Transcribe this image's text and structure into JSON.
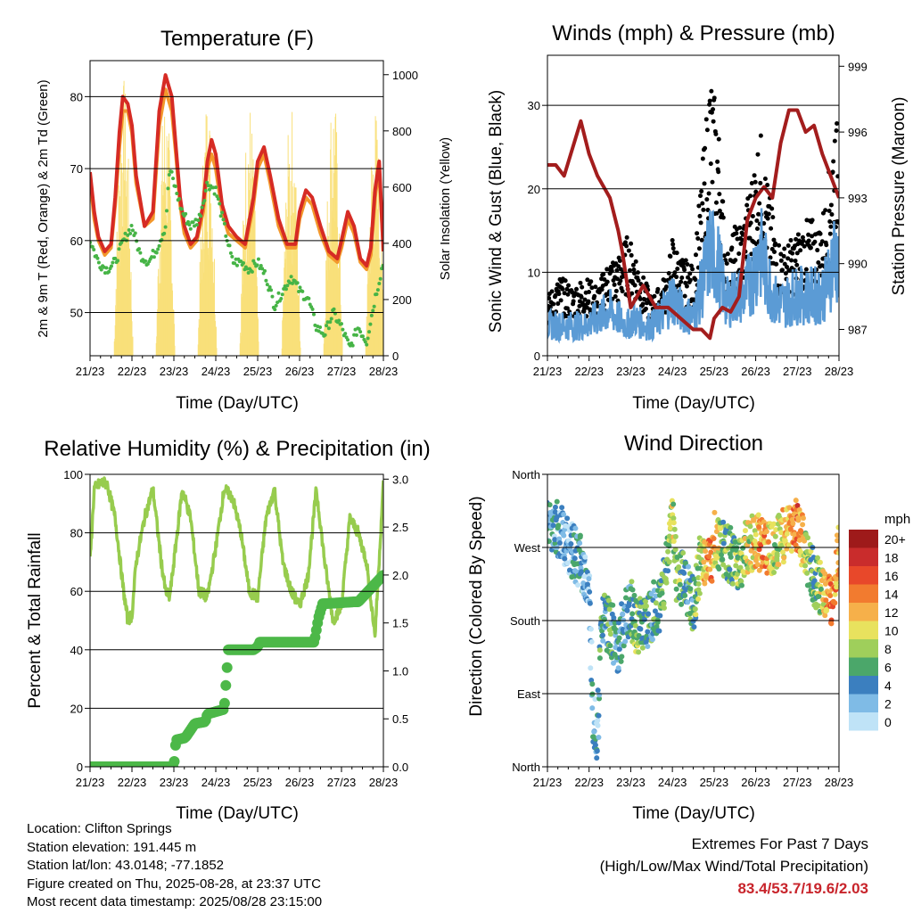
{
  "colors": {
    "temp_2m": "#d62b24",
    "temp_9m": "#f3982c",
    "dewpoint": "#46b446",
    "solar": "#f9e07a",
    "wind": "#5b9bd5",
    "gust": "#000000",
    "pressure": "#a31d1d",
    "rh": "#97cc4e",
    "precip": "#4cb848",
    "gridline": "#000000"
  },
  "x_ticks": [
    "21/23",
    "22/23",
    "23/23",
    "24/23",
    "25/23",
    "26/23",
    "27/23",
    "28/23"
  ],
  "chart_data": [
    {
      "id": "temperature",
      "type": "line",
      "title": "Temperature (F)",
      "xlabel": "Time (Day/UTC)",
      "ylabel": "2m & 9m T (Red, Orange) & 2m Td (Green)",
      "ylabel_right": "Solar Insolation (Yellow)",
      "xlim": [
        0,
        7
      ],
      "ylim": [
        44,
        85
      ],
      "ylim_right": [
        0,
        1050
      ],
      "yticks": [
        50,
        60,
        70,
        80
      ],
      "yticks_right": [
        0,
        200,
        400,
        600,
        800,
        1000
      ],
      "series": [
        {
          "key": "temp_9m",
          "axis": "left",
          "x": [
            0,
            0.1,
            0.2,
            0.35,
            0.5,
            0.6,
            0.7,
            0.78,
            0.9,
            1.0,
            1.1,
            1.3,
            1.5,
            1.65,
            1.8,
            1.95,
            2.05,
            2.15,
            2.25,
            2.4,
            2.55,
            2.7,
            2.8,
            2.9,
            3.0,
            3.15,
            3.3,
            3.5,
            3.7,
            3.9,
            4.0,
            4.15,
            4.3,
            4.5,
            4.7,
            4.9,
            5.0,
            5.15,
            5.3,
            5.5,
            5.7,
            5.9,
            6.0,
            6.15,
            6.3,
            6.45,
            6.6,
            6.7,
            6.8,
            6.9,
            7.0
          ],
          "values": [
            68.5,
            63,
            60,
            58,
            59,
            65,
            73,
            78,
            78,
            75,
            68,
            62,
            63,
            76,
            81,
            78,
            72,
            65,
            61,
            59,
            60,
            64,
            70,
            72,
            70,
            64,
            61,
            60,
            59,
            65,
            70,
            72,
            68,
            62,
            59,
            59,
            63,
            66,
            65,
            61,
            58,
            57,
            59,
            63,
            61,
            57,
            56,
            58,
            66,
            70,
            58.5
          ]
        },
        {
          "key": "temp_2m",
          "axis": "left",
          "x": [
            0,
            0.1,
            0.2,
            0.35,
            0.5,
            0.6,
            0.7,
            0.78,
            0.9,
            1.0,
            1.1,
            1.3,
            1.5,
            1.65,
            1.8,
            1.95,
            2.05,
            2.15,
            2.25,
            2.4,
            2.55,
            2.7,
            2.8,
            2.9,
            3.0,
            3.15,
            3.3,
            3.5,
            3.7,
            3.9,
            4.0,
            4.15,
            4.3,
            4.5,
            4.7,
            4.9,
            5.0,
            5.15,
            5.3,
            5.5,
            5.7,
            5.9,
            6.0,
            6.15,
            6.3,
            6.45,
            6.6,
            6.7,
            6.8,
            6.9,
            7.0
          ],
          "values": [
            69.5,
            64,
            60.5,
            58.5,
            59.5,
            66,
            75,
            80,
            79,
            76,
            69,
            62,
            64,
            78,
            83,
            80,
            73,
            66,
            62,
            59.5,
            60.5,
            65,
            71,
            74,
            72,
            65,
            62,
            60.5,
            59.5,
            66,
            71,
            73,
            69,
            63,
            59.5,
            59.5,
            64,
            67,
            66,
            62,
            58.5,
            57.5,
            60,
            64,
            62,
            57.5,
            56.5,
            59,
            67,
            71,
            58.5
          ]
        },
        {
          "key": "dewpoint",
          "axis": "left",
          "x": [
            0,
            0.2,
            0.4,
            0.6,
            0.8,
            1.0,
            1.2,
            1.4,
            1.6,
            1.8,
            1.9,
            2.0,
            2.2,
            2.4,
            2.6,
            2.8,
            3.0,
            3.2,
            3.4,
            3.6,
            3.8,
            4.0,
            4.2,
            4.4,
            4.6,
            4.8,
            5.0,
            5.2,
            5.4,
            5.6,
            5.8,
            6.0,
            6.2,
            6.4,
            6.6,
            6.8,
            7.0
          ],
          "values": [
            60,
            57,
            56,
            57,
            60,
            62,
            58,
            57,
            59,
            62,
            70,
            68,
            64,
            62,
            63,
            68,
            67,
            62,
            57,
            57,
            56,
            57,
            55,
            51,
            53,
            55,
            53,
            52,
            48,
            47,
            50,
            48,
            45,
            48,
            46,
            52,
            57
          ]
        },
        {
          "key": "solar",
          "axis": "right",
          "peaks": [
            0.8,
            1.8,
            2.8,
            3.8,
            4.8,
            5.8,
            6.8
          ],
          "peak_values": [
            1000,
            960,
            960,
            930,
            900,
            980,
            900
          ]
        }
      ]
    },
    {
      "id": "winds",
      "type": "scatter",
      "title": "Winds (mph) & Pressure (mb)",
      "xlabel": "Time (Day/UTC)",
      "ylabel": "Sonic Wind & Gust (Blue, Black)",
      "ylabel_right": "Station Pressure (Maroon)",
      "xlim": [
        0,
        7
      ],
      "ylim": [
        0,
        36
      ],
      "ylim_right": [
        985.8,
        999.5
      ],
      "yticks": [
        0,
        10,
        20,
        30
      ],
      "yticks_right": [
        987,
        990,
        993,
        996,
        999
      ],
      "series": [
        {
          "key": "gust",
          "kind": "points",
          "x": [
            0,
            0.3,
            0.6,
            0.9,
            1.2,
            1.5,
            1.7,
            1.9,
            2.1,
            2.3,
            2.5,
            2.7,
            2.9,
            3.0,
            3.2,
            3.5,
            3.7,
            3.9,
            4.1,
            4.3,
            4.5,
            4.7,
            4.9,
            5.1,
            5.3,
            5.5,
            5.7,
            5.9,
            6.1,
            6.3,
            6.5,
            6.7,
            6.9,
            7.0
          ],
          "values": [
            6,
            8,
            7,
            8,
            7,
            10,
            10,
            12,
            11,
            8,
            6,
            7,
            9,
            12,
            10,
            9,
            18,
            29,
            24,
            10,
            13,
            14,
            18,
            23,
            17,
            12,
            11,
            12,
            13,
            14,
            13,
            16,
            25,
            22
          ]
        },
        {
          "key": "wind",
          "kind": "line",
          "x": [
            0,
            0.3,
            0.6,
            0.9,
            1.2,
            1.5,
            1.7,
            1.9,
            2.1,
            2.3,
            2.5,
            2.7,
            2.9,
            3.0,
            3.2,
            3.5,
            3.7,
            3.9,
            4.1,
            4.3,
            4.5,
            4.7,
            4.9,
            5.1,
            5.3,
            5.5,
            5.7,
            5.9,
            6.1,
            6.3,
            6.5,
            6.7,
            6.9,
            7.0
          ],
          "values": [
            4,
            4,
            4,
            4,
            5,
            6,
            5,
            4,
            5,
            4,
            4,
            5,
            7,
            8,
            6,
            5,
            9,
            14,
            12,
            7,
            8,
            8,
            10,
            14,
            10,
            7,
            7,
            8,
            8,
            8,
            8,
            9,
            14,
            11
          ]
        },
        {
          "key": "pressure",
          "kind": "line",
          "axis": "right",
          "x": [
            0,
            0.2,
            0.4,
            0.8,
            1.0,
            1.2,
            1.5,
            1.7,
            1.8,
            2.0,
            2.3,
            2.6,
            2.9,
            3.2,
            3.5,
            3.7,
            3.9,
            4.0,
            4.2,
            4.4,
            4.6,
            4.8,
            5.0,
            5.2,
            5.4,
            5.6,
            5.8,
            6.0,
            6.2,
            6.4,
            6.6,
            6.8,
            7.0
          ],
          "values": [
            994.5,
            994.5,
            994.0,
            996.5,
            995.0,
            994.0,
            993.0,
            991.5,
            990.5,
            988.0,
            989.0,
            988.0,
            988.0,
            987.5,
            987.0,
            987.0,
            986.6,
            987.5,
            988.0,
            987.8,
            988.5,
            992.0,
            993.0,
            993.5,
            993.0,
            995.5,
            997.0,
            997.0,
            996.0,
            996.3,
            995.0,
            994.0,
            993.0
          ]
        }
      ]
    },
    {
      "id": "humidity",
      "type": "line",
      "title": "Relative Humidity (%) & Precipitation (in)",
      "xlabel": "Time (Day/UTC)",
      "ylabel": "Percent & Total Rainfall",
      "xlim": [
        0,
        7
      ],
      "ylim": [
        0,
        100
      ],
      "ylim_right": [
        0,
        3.05
      ],
      "yticks": [
        0,
        20,
        40,
        60,
        80,
        100
      ],
      "yticks_right": [
        "0.0",
        "0.5",
        "1.0",
        "1.5",
        "2.0",
        "2.5",
        "3.0"
      ],
      "series": [
        {
          "key": "rh",
          "axis": "left",
          "x": [
            0,
            0.1,
            0.25,
            0.4,
            0.6,
            0.8,
            0.9,
            1.0,
            1.1,
            1.3,
            1.5,
            1.7,
            1.8,
            1.9,
            2.0,
            2.2,
            2.4,
            2.6,
            2.8,
            3.0,
            3.2,
            3.4,
            3.6,
            3.8,
            4.0,
            4.2,
            4.4,
            4.6,
            4.8,
            5.0,
            5.2,
            5.4,
            5.6,
            5.8,
            6.0,
            6.2,
            6.4,
            6.6,
            6.8,
            7.0
          ],
          "values": [
            70,
            95,
            97,
            97,
            85,
            60,
            50,
            52,
            70,
            85,
            95,
            70,
            60,
            58,
            70,
            95,
            85,
            60,
            58,
            75,
            95,
            92,
            80,
            60,
            58,
            85,
            95,
            70,
            60,
            55,
            65,
            95,
            70,
            50,
            55,
            85,
            80,
            70,
            45,
            97
          ]
        },
        {
          "key": "precip",
          "axis": "right",
          "x": [
            0,
            2.0,
            2.05,
            2.25,
            2.3,
            2.5,
            2.75,
            2.8,
            3.2,
            3.3,
            3.9,
            4.0,
            4.05,
            5.35,
            5.45,
            5.55,
            5.95,
            6.3,
            6.4,
            7.0
          ],
          "values": [
            0.0,
            0.0,
            0.28,
            0.3,
            0.32,
            0.45,
            0.47,
            0.55,
            0.6,
            1.22,
            1.22,
            1.25,
            1.3,
            1.3,
            1.55,
            1.7,
            1.71,
            1.72,
            1.72,
            2.0
          ]
        }
      ]
    },
    {
      "id": "wind_direction",
      "type": "scatter",
      "title": "Wind Direction",
      "xlabel": "Time (Day/UTC)",
      "ylabel": "Direction (Colored By Speed)",
      "xlim": [
        0,
        7
      ],
      "ylim": [
        0,
        360
      ],
      "yticks": [
        "North",
        "East",
        "South",
        "West",
        "North"
      ],
      "legend_title": "mph",
      "legend_labels": [
        "20+",
        "18",
        "16",
        "14",
        "12",
        "10",
        "8",
        "6",
        "4",
        "2",
        "0"
      ],
      "legend_colors": [
        "#9e1a1a",
        "#c92c2c",
        "#e8482a",
        "#f27b2f",
        "#f6b04a",
        "#e8e25e",
        "#9fcf5b",
        "#4ba76a",
        "#3b7fbf",
        "#7fbbe6",
        "#bfe3f7"
      ],
      "series": [
        {
          "key": "direction",
          "x": [
            0.1,
            0.3,
            0.5,
            0.7,
            0.9,
            1.0,
            1.1,
            1.2,
            1.3,
            1.5,
            1.7,
            1.9,
            2.0,
            2.1,
            2.3,
            2.5,
            2.7,
            2.9,
            3.0,
            3.1,
            3.3,
            3.5,
            3.7,
            3.9,
            4.0,
            4.2,
            4.4,
            4.6,
            4.8,
            5.0,
            5.2,
            5.4,
            5.6,
            5.8,
            6.0,
            6.2,
            6.4,
            6.6,
            6.8,
            7.0
          ],
          "values": [
            300,
            290,
            270,
            260,
            240,
            210,
            60,
            40,
            180,
            170,
            150,
            190,
            200,
            170,
            175,
            190,
            200,
            260,
            320,
            240,
            230,
            200,
            260,
            250,
            280,
            270,
            260,
            250,
            270,
            280,
            270,
            270,
            280,
            290,
            300,
            260,
            230,
            220,
            200,
            270
          ],
          "speeds": [
            3,
            3,
            2,
            4,
            3,
            2,
            4,
            3,
            5,
            6,
            4,
            4,
            6,
            7,
            6,
            5,
            6,
            6,
            9,
            8,
            5,
            6,
            9,
            14,
            11,
            7,
            6,
            7,
            9,
            11,
            14,
            8,
            10,
            12,
            15,
            8,
            6,
            10,
            15,
            12
          ]
        }
      ]
    }
  ],
  "info": {
    "location": "Location: Clifton Springs",
    "elevation": "Station elevation: 191.445 m",
    "latlon": "Station lat/lon: 43.0148; -77.1852",
    "created": "Figure created on Thu, 2025-08-28, at 23:37 UTC",
    "recent": "Most recent data timestamp: 2025/08/28 23:15:00"
  },
  "extremes": {
    "title": "Extremes For Past 7 Days",
    "subtitle": "(High/Low/Max Wind/Total Precipitation)",
    "values": "83.4/53.7/19.6/2.03"
  }
}
